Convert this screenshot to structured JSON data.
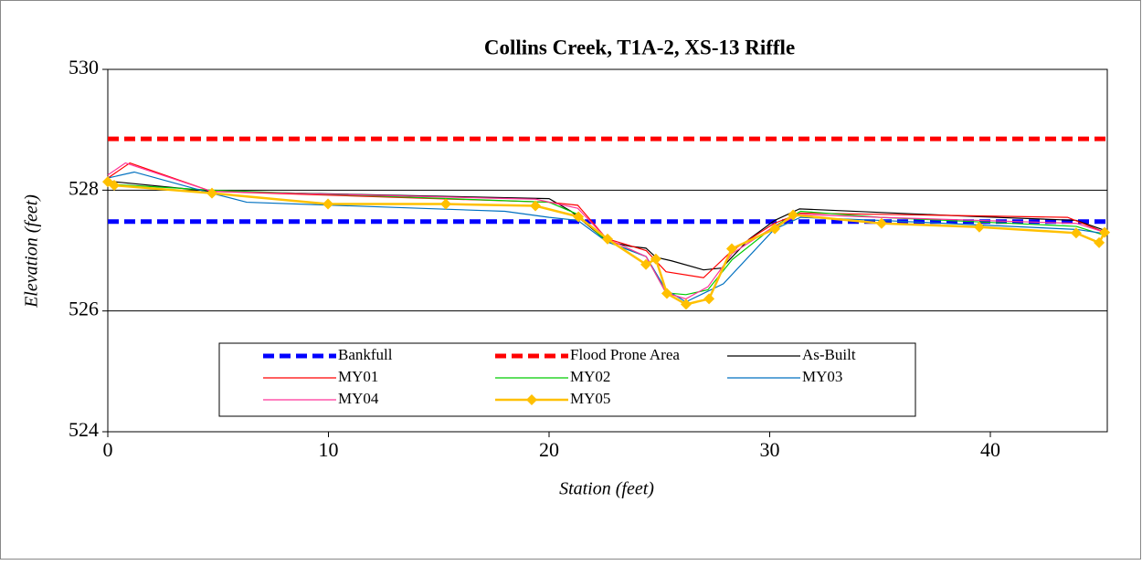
{
  "chart_data": {
    "type": "line",
    "title": "Collins Creek, T1A-2, XS-13 Riffle",
    "x_label": "Station (feet)",
    "y_label": "Elevation (feet)",
    "xlim": [
      0,
      45.3
    ],
    "xticks": [
      0,
      10,
      20,
      30,
      40
    ],
    "ylim": [
      524,
      530
    ],
    "yticks": [
      524,
      526,
      528,
      530
    ],
    "grid": true,
    "legend": "lower center",
    "series": [
      {
        "name": "Bankfull",
        "color": "#0000ff",
        "style": "dashed",
        "x": [
          0,
          45.3
        ],
        "values": [
          527.48,
          527.48
        ]
      },
      {
        "name": "Flood Prone Area",
        "color": "#ff0000",
        "style": "dashed",
        "x": [
          0,
          45.3
        ],
        "values": [
          528.85,
          528.85
        ]
      },
      {
        "name": "As-Built",
        "color": "#000000",
        "style": "solid",
        "x": [
          0,
          4.72,
          20.0,
          21.0,
          22.65,
          23.68,
          24.39,
          24.84,
          25.55,
          27.0,
          27.82,
          29.07,
          30.23,
          31.35,
          35.07,
          39.5,
          43.89,
          45.3
        ],
        "values": [
          528.15,
          527.98,
          527.86,
          527.65,
          527.15,
          527.07,
          527.04,
          526.89,
          526.83,
          526.68,
          526.71,
          527.19,
          527.5,
          527.69,
          527.63,
          527.56,
          527.5,
          527.32
        ]
      },
      {
        "name": "MY01",
        "color": "#ff0000",
        "style": "solid",
        "x": [
          0,
          1,
          4.7,
          20,
          21.3,
          22.6,
          24.4,
          25.3,
          27,
          28.3,
          30.2,
          31.4,
          35,
          43.5,
          45.2
        ],
        "values": [
          528.2,
          528.45,
          527.98,
          527.8,
          527.75,
          527.2,
          527.0,
          526.65,
          526.55,
          527.0,
          527.45,
          527.62,
          527.6,
          527.55,
          527.3
        ]
      },
      {
        "name": "MY02",
        "color": "#00cc00",
        "style": "solid",
        "x": [
          0,
          4.7,
          20,
          21.3,
          22.6,
          24.4,
          25.3,
          26.2,
          27.2,
          28.3,
          30.2,
          31.4,
          35,
          43.9,
          45.2
        ],
        "values": [
          528.1,
          528.0,
          527.8,
          527.6,
          527.15,
          526.9,
          526.3,
          526.27,
          526.35,
          526.85,
          527.4,
          527.65,
          527.55,
          527.4,
          527.25
        ]
      },
      {
        "name": "MY03",
        "color": "#0070c0",
        "style": "solid",
        "x": [
          0,
          1.2,
          4.7,
          6.3,
          18,
          20,
          21.3,
          22.6,
          24.4,
          25.3,
          26.2,
          27.9,
          30.2,
          31.4,
          35,
          43.9,
          45.2
        ],
        "values": [
          528.2,
          528.3,
          527.95,
          527.8,
          527.65,
          527.55,
          527.5,
          527.15,
          526.9,
          526.35,
          526.15,
          526.45,
          527.35,
          527.55,
          527.5,
          527.35,
          527.28
        ]
      },
      {
        "name": "MY04",
        "color": "#ff3399",
        "style": "solid",
        "x": [
          0,
          0.8,
          4.7,
          19.4,
          21.3,
          22.6,
          24.4,
          25.3,
          26.2,
          27.2,
          28.3,
          30.2,
          31.4,
          35,
          43.9,
          45.2
        ],
        "values": [
          528.25,
          528.45,
          527.98,
          527.85,
          527.7,
          527.2,
          526.9,
          526.3,
          526.2,
          526.4,
          526.95,
          527.4,
          527.6,
          527.55,
          527.45,
          527.3
        ]
      },
      {
        "name": "MY05",
        "color": "#ffc000",
        "style": "solid",
        "marker": "diamond",
        "x": [
          0,
          0.29,
          4.72,
          9.98,
          15.32,
          19.38,
          21.33,
          22.65,
          24.39,
          24.84,
          25.34,
          26.21,
          27.25,
          28.28,
          30.23,
          31.06,
          35.07,
          39.5,
          43.89,
          44.93,
          45.18
        ],
        "values": [
          528.14,
          528.08,
          527.95,
          527.77,
          527.77,
          527.74,
          527.56,
          527.19,
          526.77,
          526.86,
          526.29,
          526.11,
          526.2,
          527.03,
          527.36,
          527.59,
          527.45,
          527.39,
          527.29,
          527.13,
          527.3
        ]
      }
    ]
  }
}
